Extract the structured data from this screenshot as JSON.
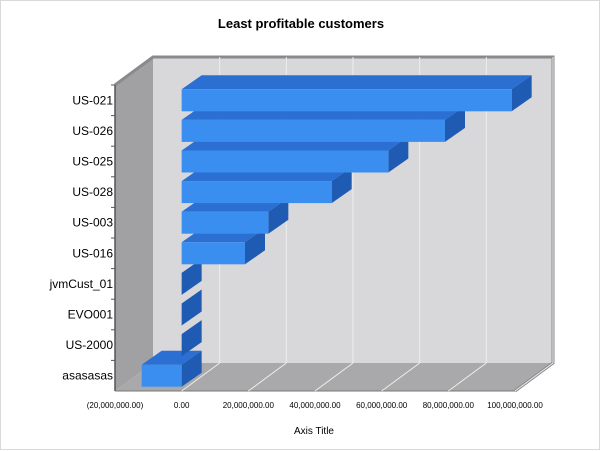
{
  "chart_data": {
    "type": "bar",
    "orientation": "horizontal",
    "three_d": true,
    "title": "Least profitable customers",
    "xlabel": "Axis Title",
    "ylabel": "",
    "categories": [
      "US-021",
      "US-026",
      "US-025",
      "US-028",
      "US-003",
      "US-016",
      "jvmCust_01",
      "EVO001",
      "US-2000",
      "asasasas"
    ],
    "values": [
      99000000,
      79000000,
      62000000,
      45000000,
      26000000,
      19000000,
      0,
      0,
      0,
      -12000000
    ],
    "xlim": [
      -20000000,
      100000000
    ],
    "xticks": [
      -20000000,
      0,
      20000000,
      40000000,
      60000000,
      80000000,
      100000000
    ],
    "xtick_labels": [
      "(20,000,000.00)",
      "0.00",
      "20,000,000.00",
      "40,000,000.00",
      "60,000,000.00",
      "80,000,000.00",
      "100,000,000.00"
    ],
    "grid": true,
    "legend": "none",
    "colors": {
      "bar_front": "#3a8ef0",
      "bar_top": "#2a6fd1",
      "bar_side": "#1f5bb3",
      "back_wall": "#d8d7da",
      "side_wall": "#a1a0a3",
      "floor": "#a9a8ab",
      "wall_edge": "#8a898c",
      "gridline": "#eeeeee"
    }
  }
}
